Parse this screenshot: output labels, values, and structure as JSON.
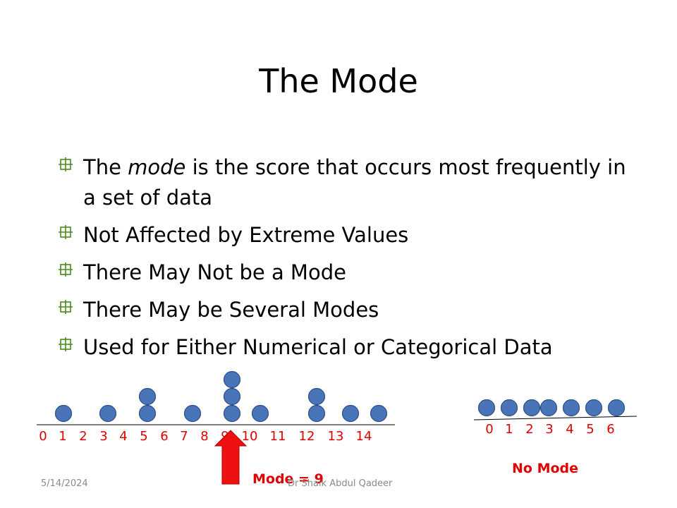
{
  "slide": {
    "title": "The Mode",
    "bullets": [
      {
        "parts": [
          {
            "text": "The ",
            "italic": false
          },
          {
            "text": "mode",
            "italic": true
          },
          {
            "text": " is the score that occurs most frequently in a set of data",
            "italic": false
          }
        ]
      },
      {
        "parts": [
          {
            "text": "Not Affected by Extreme Values",
            "italic": false
          }
        ]
      },
      {
        "parts": [
          {
            "text": "There May Not be a Mode",
            "italic": false
          }
        ]
      },
      {
        "parts": [
          {
            "text": "There May be Several Modes",
            "italic": false
          }
        ]
      },
      {
        "parts": [
          {
            "text": "Used for Either Numerical or Categorical Data",
            "italic": false
          }
        ]
      }
    ],
    "bullet_icon": "square-crosshair-icon",
    "bullet_color": "#4a8a1a",
    "footer": {
      "date": "5/14/2024",
      "author": "Dr Shaik Abdul Qadeer"
    }
  },
  "chart_data": [
    {
      "type": "scatter",
      "x": [
        0,
        1,
        2,
        3,
        4,
        5,
        6,
        7,
        8,
        9,
        10,
        11,
        12,
        13,
        14
      ],
      "counts": [
        0,
        1,
        0,
        1,
        0,
        2,
        0,
        1,
        0,
        3,
        1,
        0,
        2,
        1,
        1
      ],
      "tick_labels": [
        "0",
        "1",
        "2",
        "3",
        "4",
        "5",
        "6",
        "7",
        "8",
        "9",
        "10",
        "11",
        "12",
        "13",
        "14"
      ],
      "annotation": "Mode = 9",
      "annotation_target": 9,
      "dot_color": "#4a74b8",
      "label_color": "#e00000"
    },
    {
      "type": "scatter",
      "x": [
        0,
        1,
        2,
        3,
        4,
        5,
        6
      ],
      "counts": [
        1,
        1,
        1,
        1,
        1,
        1,
        1
      ],
      "tick_labels": [
        "0",
        "1",
        "2",
        "3",
        "4",
        "5",
        "6"
      ],
      "annotation": "No Mode",
      "dot_color": "#4a74b8",
      "label_color": "#e00000"
    }
  ]
}
